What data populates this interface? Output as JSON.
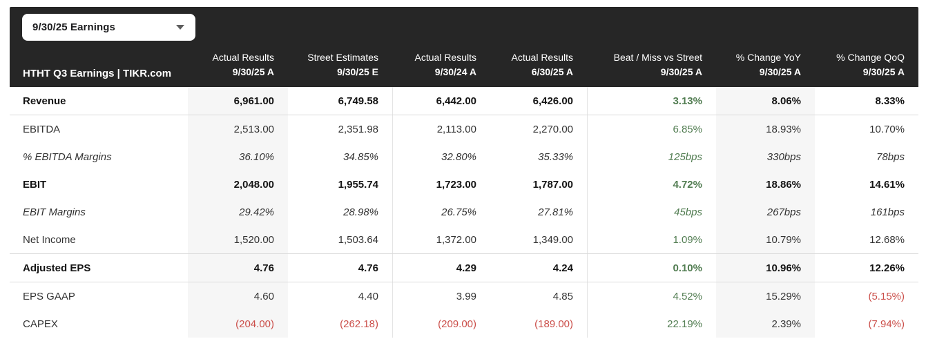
{
  "dropdown": {
    "value": "9/30/25 Earnings"
  },
  "header": {
    "title": "HTHT Q3 Earnings | TIKR.com",
    "columns": [
      {
        "line1": "Actual Results",
        "line2": "9/30/25 A"
      },
      {
        "line1": "Street Estimates",
        "line2": "9/30/25 E"
      },
      {
        "line1": "Actual Results",
        "line2": "9/30/24 A"
      },
      {
        "line1": "Actual Results",
        "line2": "6/30/25 A"
      },
      {
        "line1": "Beat / Miss vs Street",
        "line2": "9/30/25 A"
      },
      {
        "line1": "% Change YoY",
        "line2": "9/30/25 A"
      },
      {
        "line1": "% Change QoQ",
        "line2": "9/30/25 A"
      }
    ]
  },
  "rows": [
    {
      "label": "Revenue",
      "values": [
        "6,961.00",
        "6,749.58",
        "6,442.00",
        "6,426.00",
        "3.13%",
        "8.06%",
        "8.33%"
      ]
    },
    {
      "label": "EBITDA",
      "values": [
        "2,513.00",
        "2,351.98",
        "2,113.00",
        "2,270.00",
        "6.85%",
        "18.93%",
        "10.70%"
      ]
    },
    {
      "label": "% EBITDA Margins",
      "values": [
        "36.10%",
        "34.85%",
        "32.80%",
        "35.33%",
        "125bps",
        "330bps",
        "78bps"
      ]
    },
    {
      "label": "EBIT",
      "values": [
        "2,048.00",
        "1,955.74",
        "1,723.00",
        "1,787.00",
        "4.72%",
        "18.86%",
        "14.61%"
      ]
    },
    {
      "label": "EBIT Margins",
      "values": [
        "29.42%",
        "28.98%",
        "26.75%",
        "27.81%",
        "45bps",
        "267bps",
        "161bps"
      ]
    },
    {
      "label": "Net Income",
      "values": [
        "1,520.00",
        "1,503.64",
        "1,372.00",
        "1,349.00",
        "1.09%",
        "10.79%",
        "12.68%"
      ]
    },
    {
      "label": "Adjusted EPS",
      "values": [
        "4.76",
        "4.76",
        "4.29",
        "4.24",
        "0.10%",
        "10.96%",
        "12.26%"
      ]
    },
    {
      "label": "EPS GAAP",
      "values": [
        "4.60",
        "4.40",
        "3.99",
        "4.85",
        "4.52%",
        "15.29%",
        "(5.15%)"
      ]
    },
    {
      "label": "CAPEX",
      "values": [
        "(204.00)",
        "(262.18)",
        "(209.00)",
        "(189.00)",
        "22.19%",
        "2.39%",
        "(7.94%)"
      ]
    }
  ],
  "colors": {
    "header_bg": "#262626",
    "positive_green": "#527d52",
    "negative_red": "#cb4e49",
    "column_band": "#f6f6f6",
    "separator": "#dadada"
  }
}
